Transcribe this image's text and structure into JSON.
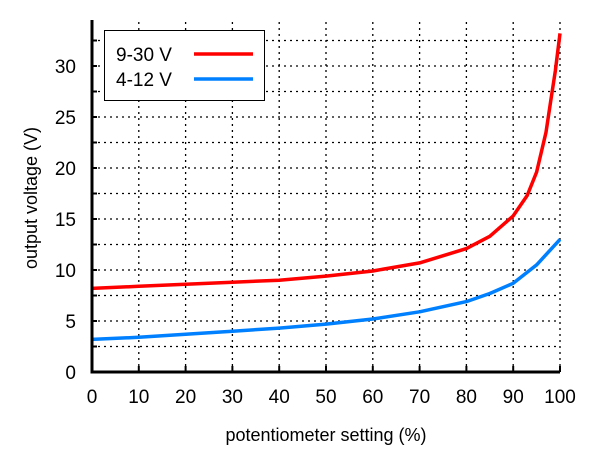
{
  "chart_data": {
    "type": "line",
    "title": "",
    "xlabel": "potentiometer setting (%)",
    "ylabel": "output voltage (V)",
    "xlim": [
      0,
      100
    ],
    "ylim": [
      0,
      33.5
    ],
    "xticks": [
      0,
      10,
      20,
      30,
      40,
      50,
      60,
      70,
      80,
      90,
      100
    ],
    "yticks": [
      0,
      5,
      10,
      15,
      20,
      25,
      30
    ],
    "ygrid_minor": [
      2.5,
      7.5,
      12.5,
      17.5,
      22.5,
      27.5,
      32.5
    ],
    "grid": true,
    "grid_style": "dotted",
    "legend_position": "upper left",
    "series": [
      {
        "name": "9-30 V",
        "color": "#ff0000",
        "x": [
          0,
          10,
          20,
          30,
          40,
          50,
          60,
          70,
          80,
          85,
          90,
          93,
          95,
          97,
          98,
          99,
          100
        ],
        "y": [
          8.2,
          8.4,
          8.6,
          8.8,
          9.0,
          9.4,
          9.9,
          10.7,
          12.1,
          13.3,
          15.3,
          17.3,
          19.6,
          23.5,
          26.5,
          29.5,
          33.2
        ]
      },
      {
        "name": "4-12 V",
        "color": "#0080ff",
        "x": [
          0,
          10,
          20,
          30,
          40,
          50,
          60,
          70,
          80,
          85,
          90,
          95,
          100
        ],
        "y": [
          3.2,
          3.4,
          3.7,
          4.0,
          4.3,
          4.7,
          5.2,
          5.9,
          6.9,
          7.7,
          8.7,
          10.5,
          13.0
        ]
      }
    ]
  }
}
